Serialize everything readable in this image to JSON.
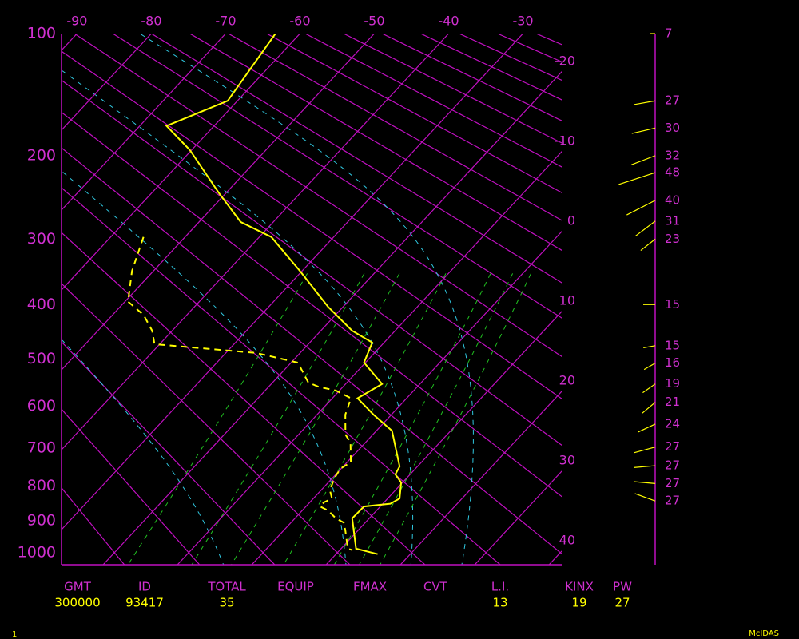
{
  "chart_data": {
    "type": "skewt",
    "ylim": [
      100,
      1040
    ],
    "yticks": [
      100,
      200,
      300,
      400,
      500,
      600,
      700,
      800,
      900,
      1000
    ],
    "xlim": [
      -25.6,
      41.7
    ],
    "xticks": [
      -90,
      -80,
      -70,
      -60,
      -50,
      -40,
      -30,
      -20,
      -10,
      0,
      10,
      20,
      30,
      40
    ],
    "series": [
      {
        "color": "#ffff00",
        "style": "solid",
        "pressure": [
          100,
          149,
          171,
          194,
          242,
          277,
          297,
          346,
          404,
          446,
          468,
          507,
          551,
          582,
          619,
          657,
          747,
          768,
          790,
          835,
          850,
          858,
          893,
          987,
          1005
        ],
        "values": [
          -63.3,
          -61.3,
          -66.4,
          -60.3,
          -50.8,
          -44.4,
          -38.4,
          -30.3,
          -22.0,
          -15.8,
          -11.6,
          -10.2,
          -5.1,
          -6.6,
          -2.4,
          2.1,
          7.6,
          8.0,
          9.8,
          11.6,
          11.0,
          7.8,
          7.7,
          12.0,
          15.6
        ]
      },
      {
        "color": "#ffff00",
        "style": "dashed",
        "pressure": [
          297,
          346,
          395,
          418,
          446,
          471,
          488,
          507,
          548,
          557,
          565,
          582,
          619,
          666,
          686,
          736,
          753,
          779,
          812,
          835,
          846,
          858,
          870,
          893,
          906,
          930,
          987,
          992
        ],
        "values": [
          -55.6,
          -52.9,
          -49.6,
          -45.8,
          -42.7,
          -40.7,
          -25.9,
          -19.1,
          -15.2,
          -13.3,
          -10.5,
          -7.5,
          -6.2,
          -3.7,
          -2.0,
          0.5,
          -0.1,
          0.3,
          1.2,
          2.5,
          1.9,
          1.9,
          3.5,
          5.5,
          7.1,
          8.3,
          10.9,
          11.7
        ]
      }
    ],
    "winds": {
      "color": "#ffff00",
      "pressure": [
        100,
        149,
        173,
        200,
        218,
        250,
        276,
        300,
        400,
        474,
        508,
        551,
        591,
        641,
        697,
        745,
        793,
        842
      ],
      "values": [
        7,
        27,
        30,
        32,
        48,
        40,
        31,
        23,
        15,
        15,
        16,
        19,
        21,
        24,
        27,
        27,
        27,
        27
      ],
      "direction": [
        270,
        260,
        257,
        249,
        252,
        243,
        233,
        232,
        270,
        260,
        240,
        235,
        230,
        245,
        255,
        265,
        275,
        290
      ]
    },
    "indices": {
      "headers": [
        "GMT",
        "ID",
        "TOTAL",
        "EQUIP",
        "FMAX",
        "CVT",
        "L.I.",
        "KINX",
        "PW"
      ],
      "values": [
        300000,
        93417,
        35,
        null,
        null,
        null,
        13,
        19,
        27
      ]
    }
  },
  "footer": {
    "page": "1",
    "brand": "McIDAS"
  }
}
